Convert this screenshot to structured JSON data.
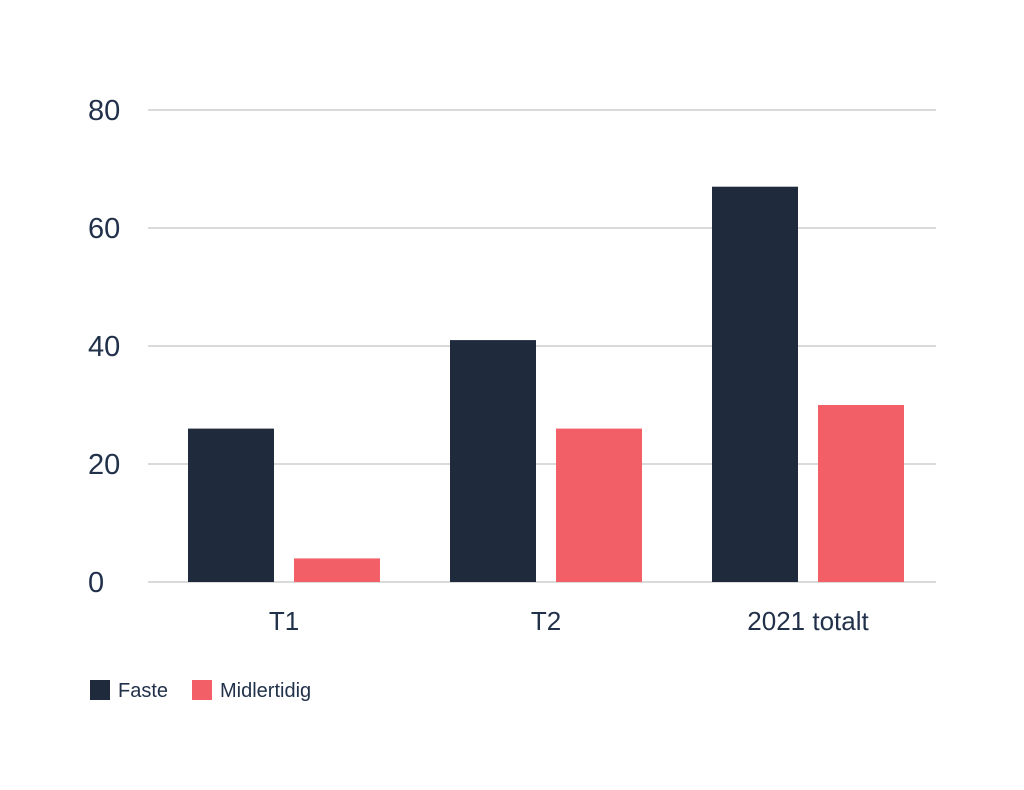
{
  "chart_data": {
    "type": "bar",
    "title": "",
    "xlabel": "",
    "ylabel": "",
    "categories": [
      "T1",
      "T2",
      "2021 totalt"
    ],
    "series": [
      {
        "name": "Faste",
        "values": [
          26,
          41,
          67
        ],
        "color": "#1f2a3d"
      },
      {
        "name": "Midlertidig",
        "values": [
          4,
          26,
          30
        ],
        "color": "#f25f67"
      }
    ],
    "ylim": [
      0,
      80
    ],
    "yticks": [
      0,
      20,
      40,
      60,
      80
    ],
    "grid": true,
    "legend_position": "bottom-left"
  }
}
